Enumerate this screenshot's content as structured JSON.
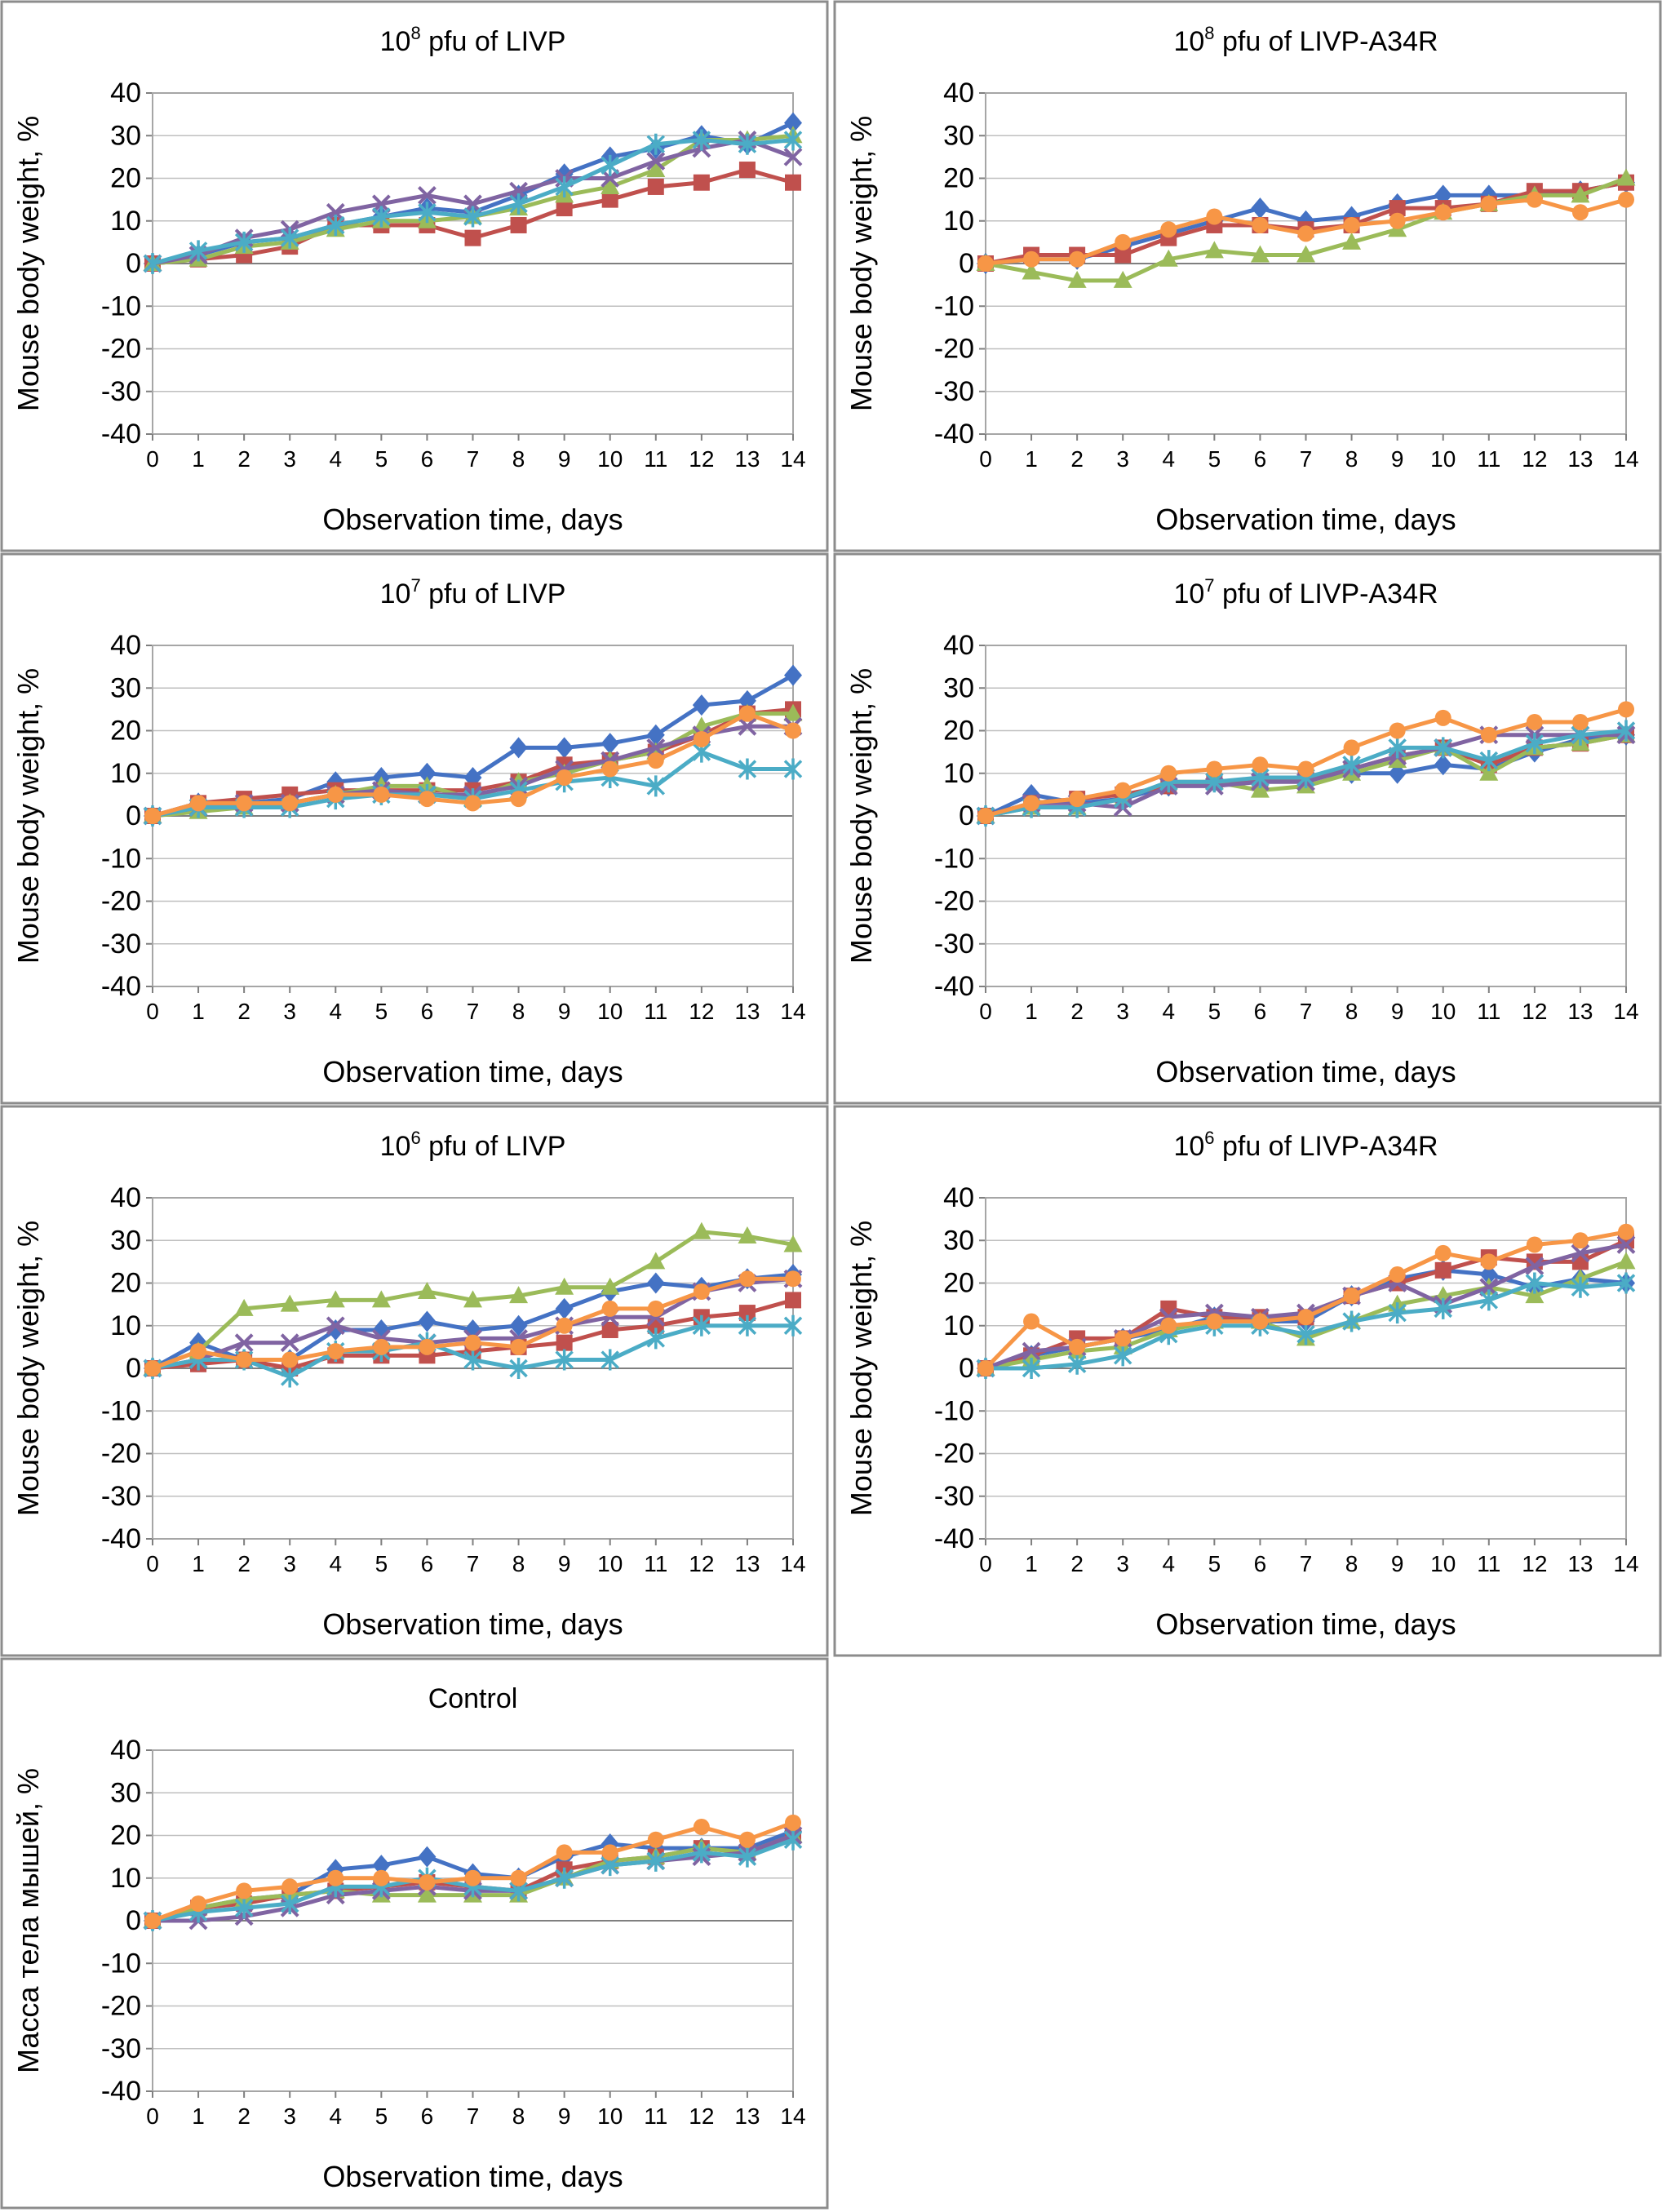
{
  "chart_data": [
    {
      "type": "line",
      "title": {
        "base": "10",
        "sup": "8",
        "rest": " pfu of LIVP"
      },
      "xlabel": "Observation time, days",
      "ylabel": "Mouse body weight, %",
      "x": [
        0,
        1,
        2,
        3,
        4,
        5,
        6,
        7,
        8,
        9,
        10,
        11,
        12,
        13,
        14
      ],
      "ylim": [
        -40,
        40
      ],
      "yticks": [
        40,
        30,
        20,
        10,
        0,
        -10,
        -20,
        -30,
        -40
      ],
      "grid": true,
      "series": [
        {
          "marker": "diamond",
          "color": "#4472c4",
          "values": [
            0,
            2,
            5,
            6,
            9,
            11,
            13,
            12,
            16,
            21,
            25,
            27,
            30,
            28,
            33
          ]
        },
        {
          "marker": "square",
          "color": "#c0504d",
          "values": [
            0,
            1,
            2,
            4,
            9,
            9,
            9,
            6,
            9,
            13,
            15,
            18,
            19,
            22,
            19
          ]
        },
        {
          "marker": "triangle",
          "color": "#9bbb59",
          "values": [
            0,
            1,
            4,
            5,
            8,
            10,
            10,
            11,
            13,
            16,
            18,
            22,
            29,
            29,
            30
          ]
        },
        {
          "marker": "x",
          "color": "#8064a2",
          "values": [
            0,
            2,
            6,
            8,
            12,
            14,
            16,
            14,
            17,
            20,
            20,
            24,
            27,
            29,
            25
          ]
        },
        {
          "marker": "star",
          "color": "#4bacc6",
          "values": [
            0,
            3,
            5,
            6,
            9,
            11,
            12,
            11,
            14,
            18,
            23,
            28,
            29,
            28,
            29
          ]
        }
      ]
    },
    {
      "type": "line",
      "title": {
        "base": "10",
        "sup": "8",
        "rest": " pfu of LIVP-A34R"
      },
      "xlabel": "Observation time, days",
      "ylabel": "Mouse body weight, %",
      "x": [
        0,
        1,
        2,
        3,
        4,
        5,
        6,
        7,
        8,
        9,
        10,
        11,
        12,
        13,
        14
      ],
      "ylim": [
        -40,
        40
      ],
      "yticks": [
        40,
        30,
        20,
        10,
        0,
        -10,
        -20,
        -30,
        -40
      ],
      "grid": true,
      "series": [
        {
          "marker": "diamond",
          "color": "#4472c4",
          "values": [
            0,
            1,
            1,
            4,
            7,
            10,
            13,
            10,
            11,
            14,
            16,
            16,
            16,
            17,
            19
          ]
        },
        {
          "marker": "square",
          "color": "#c0504d",
          "values": [
            0,
            2,
            2,
            2,
            6,
            9,
            9,
            8,
            9,
            13,
            13,
            14,
            17,
            17,
            19
          ]
        },
        {
          "marker": "triangle",
          "color": "#9bbb59",
          "values": [
            0,
            -2,
            -4,
            -4,
            1,
            3,
            2,
            2,
            5,
            8,
            12,
            14,
            16,
            16,
            20
          ]
        },
        {
          "marker": "circle",
          "color": "#f79646",
          "values": [
            0,
            1,
            1,
            5,
            8,
            11,
            9,
            7,
            9,
            10,
            12,
            14,
            15,
            12,
            15
          ]
        }
      ]
    },
    {
      "type": "line",
      "title": {
        "base": "10",
        "sup": "7",
        "rest": " pfu of LIVP"
      },
      "xlabel": "Observation time, days",
      "ylabel": "Mouse body weight, %",
      "x": [
        0,
        1,
        2,
        3,
        4,
        5,
        6,
        7,
        8,
        9,
        10,
        11,
        12,
        13,
        14
      ],
      "ylim": [
        -40,
        40
      ],
      "yticks": [
        40,
        30,
        20,
        10,
        0,
        -10,
        -20,
        -30,
        -40
      ],
      "grid": true,
      "series": [
        {
          "marker": "diamond",
          "color": "#4472c4",
          "values": [
            0,
            3,
            3,
            4,
            8,
            9,
            10,
            9,
            16,
            16,
            17,
            19,
            26,
            27,
            33
          ]
        },
        {
          "marker": "square",
          "color": "#c0504d",
          "values": [
            0,
            3,
            4,
            5,
            6,
            6,
            6,
            6,
            8,
            12,
            13,
            15,
            19,
            24,
            25
          ]
        },
        {
          "marker": "triangle",
          "color": "#9bbb59",
          "values": [
            0,
            1,
            2,
            3,
            5,
            7,
            7,
            4,
            8,
            10,
            13,
            15,
            21,
            24,
            24
          ]
        },
        {
          "marker": "x",
          "color": "#8064a2",
          "values": [
            0,
            2,
            3,
            3,
            5,
            6,
            5,
            5,
            7,
            11,
            13,
            16,
            19,
            21,
            21
          ]
        },
        {
          "marker": "star",
          "color": "#4bacc6",
          "values": [
            0,
            2,
            2,
            2,
            4,
            5,
            5,
            4,
            6,
            8,
            9,
            7,
            15,
            11,
            11
          ]
        },
        {
          "marker": "circle",
          "color": "#f79646",
          "values": [
            0,
            3,
            3,
            3,
            5,
            5,
            4,
            3,
            4,
            9,
            11,
            13,
            18,
            24,
            20
          ]
        }
      ]
    },
    {
      "type": "line",
      "title": {
        "base": "10",
        "sup": "7",
        "rest": " pfu of LIVP-A34R"
      },
      "xlabel": "Observation time, days",
      "ylabel": "Mouse body weight, %",
      "x": [
        0,
        1,
        2,
        3,
        4,
        5,
        6,
        7,
        8,
        9,
        10,
        11,
        12,
        13,
        14
      ],
      "ylim": [
        -40,
        40
      ],
      "yticks": [
        40,
        30,
        20,
        10,
        0,
        -10,
        -20,
        -30,
        -40
      ],
      "grid": true,
      "series": [
        {
          "marker": "diamond",
          "color": "#4472c4",
          "values": [
            0,
            5,
            3,
            4,
            7,
            8,
            8,
            9,
            10,
            10,
            12,
            11,
            15,
            18,
            19
          ]
        },
        {
          "marker": "square",
          "color": "#c0504d",
          "values": [
            0,
            3,
            4,
            5,
            7,
            8,
            8,
            9,
            11,
            14,
            16,
            12,
            16,
            17,
            19
          ]
        },
        {
          "marker": "triangle",
          "color": "#9bbb59",
          "values": [
            0,
            2,
            2,
            4,
            8,
            8,
            6,
            7,
            10,
            13,
            16,
            10,
            16,
            17,
            19
          ]
        },
        {
          "marker": "x",
          "color": "#8064a2",
          "values": [
            0,
            3,
            3,
            2,
            7,
            7,
            8,
            8,
            11,
            14,
            16,
            19,
            19,
            19,
            19
          ]
        },
        {
          "marker": "star",
          "color": "#4bacc6",
          "values": [
            0,
            2,
            2,
            4,
            8,
            8,
            9,
            9,
            12,
            16,
            16,
            13,
            17,
            19,
            20
          ]
        },
        {
          "marker": "circle",
          "color": "#f79646",
          "values": [
            0,
            3,
            4,
            6,
            10,
            11,
            12,
            11,
            16,
            20,
            23,
            19,
            22,
            22,
            25
          ]
        }
      ]
    },
    {
      "type": "line",
      "title": {
        "base": "10",
        "sup": "6",
        "rest": " pfu of LIVP"
      },
      "xlabel": "Observation time, days",
      "ylabel": "Mouse body weight, %",
      "x": [
        0,
        1,
        2,
        3,
        4,
        5,
        6,
        7,
        8,
        9,
        10,
        11,
        12,
        13,
        14
      ],
      "ylim": [
        -40,
        40
      ],
      "yticks": [
        40,
        30,
        20,
        10,
        0,
        -10,
        -20,
        -30,
        -40
      ],
      "grid": true,
      "series": [
        {
          "marker": "diamond",
          "color": "#4472c4",
          "values": [
            0,
            6,
            2,
            2,
            9,
            9,
            11,
            9,
            10,
            14,
            18,
            20,
            19,
            21,
            22
          ]
        },
        {
          "marker": "square",
          "color": "#c0504d",
          "values": [
            0,
            1,
            2,
            0,
            3,
            3,
            3,
            4,
            5,
            6,
            9,
            10,
            12,
            13,
            16
          ]
        },
        {
          "marker": "triangle",
          "color": "#9bbb59",
          "values": [
            0,
            4,
            14,
            15,
            16,
            16,
            18,
            16,
            17,
            19,
            19,
            25,
            32,
            31,
            29
          ]
        },
        {
          "marker": "x",
          "color": "#8064a2",
          "values": [
            0,
            2,
            6,
            6,
            10,
            7,
            6,
            7,
            7,
            10,
            12,
            12,
            18,
            20,
            21
          ]
        },
        {
          "marker": "star",
          "color": "#4bacc6",
          "values": [
            0,
            2,
            2,
            -2,
            4,
            4,
            6,
            2,
            0,
            2,
            2,
            7,
            10,
            10,
            10
          ]
        },
        {
          "marker": "circle",
          "color": "#f79646",
          "values": [
            0,
            4,
            2,
            2,
            4,
            5,
            5,
            6,
            5,
            10,
            14,
            14,
            18,
            21,
            21
          ]
        }
      ]
    },
    {
      "type": "line",
      "title": {
        "base": "10",
        "sup": "6",
        "rest": " pfu of LIVP-A34R"
      },
      "xlabel": "Observation time, days",
      "ylabel": "Mouse body weight, %",
      "x": [
        0,
        1,
        2,
        3,
        4,
        5,
        6,
        7,
        8,
        9,
        10,
        11,
        12,
        13,
        14
      ],
      "ylim": [
        -40,
        40
      ],
      "yticks": [
        40,
        30,
        20,
        10,
        0,
        -10,
        -20,
        -30,
        -40
      ],
      "grid": true,
      "series": [
        {
          "marker": "diamond",
          "color": "#4472c4",
          "values": [
            0,
            3,
            5,
            7,
            9,
            12,
            11,
            11,
            17,
            21,
            23,
            22,
            19,
            21,
            20
          ]
        },
        {
          "marker": "square",
          "color": "#c0504d",
          "values": [
            0,
            3,
            7,
            7,
            14,
            12,
            12,
            12,
            17,
            20,
            23,
            26,
            25,
            25,
            30
          ]
        },
        {
          "marker": "triangle",
          "color": "#9bbb59",
          "values": [
            0,
            2,
            4,
            5,
            9,
            11,
            11,
            7,
            11,
            15,
            17,
            19,
            17,
            21,
            25
          ]
        },
        {
          "marker": "x",
          "color": "#8064a2",
          "values": [
            0,
            4,
            5,
            7,
            12,
            13,
            12,
            13,
            17,
            20,
            15,
            19,
            24,
            27,
            29
          ]
        },
        {
          "marker": "star",
          "color": "#4bacc6",
          "values": [
            0,
            0,
            1,
            3,
            8,
            10,
            10,
            8,
            11,
            13,
            14,
            16,
            20,
            19,
            20
          ]
        },
        {
          "marker": "circle",
          "color": "#f79646",
          "values": [
            0,
            11,
            5,
            7,
            10,
            11,
            11,
            12,
            17,
            22,
            27,
            25,
            29,
            30,
            32
          ]
        }
      ]
    },
    {
      "type": "line",
      "title": {
        "base": "Control",
        "sup": "",
        "rest": ""
      },
      "xlabel": "Observation time, days",
      "ylabel": "Масса тела мышей, %",
      "x": [
        0,
        1,
        2,
        3,
        4,
        5,
        6,
        7,
        8,
        9,
        10,
        11,
        12,
        13,
        14
      ],
      "ylim": [
        -40,
        40
      ],
      "yticks": [
        40,
        30,
        20,
        10,
        0,
        -10,
        -20,
        -30,
        -40
      ],
      "grid": true,
      "series": [
        {
          "marker": "diamond",
          "color": "#4472c4",
          "values": [
            0,
            3,
            5,
            6,
            12,
            13,
            15,
            11,
            10,
            15,
            18,
            17,
            17,
            17,
            21
          ]
        },
        {
          "marker": "square",
          "color": "#c0504d",
          "values": [
            0,
            3,
            4,
            6,
            7,
            8,
            9,
            8,
            7,
            12,
            14,
            15,
            17,
            16,
            20
          ]
        },
        {
          "marker": "triangle",
          "color": "#9bbb59",
          "values": [
            0,
            3,
            5,
            6,
            7,
            6,
            6,
            6,
            6,
            10,
            14,
            15,
            17,
            16,
            20
          ]
        },
        {
          "marker": "x",
          "color": "#8064a2",
          "values": [
            0,
            0,
            1,
            3,
            6,
            7,
            8,
            7,
            7,
            10,
            13,
            14,
            15,
            16,
            20
          ]
        },
        {
          "marker": "star",
          "color": "#4bacc6",
          "values": [
            0,
            2,
            3,
            4,
            8,
            8,
            10,
            8,
            7,
            10,
            13,
            14,
            16,
            15,
            19
          ]
        },
        {
          "marker": "circle",
          "color": "#f79646",
          "values": [
            0,
            4,
            7,
            8,
            10,
            10,
            9,
            10,
            10,
            16,
            16,
            19,
            22,
            19,
            23
          ]
        }
      ]
    }
  ]
}
